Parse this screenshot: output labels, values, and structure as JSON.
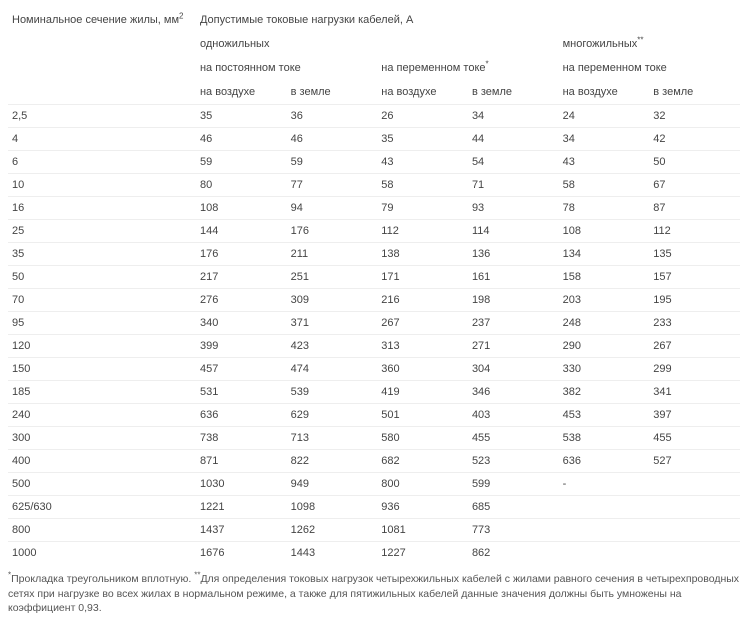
{
  "table": {
    "type": "table",
    "background_color": "#ffffff",
    "grid_color": "#eeeeee",
    "text_color": "#444444",
    "font_size_pt": 8,
    "header": {
      "section_label": "Номинальное сечение жилы, мм",
      "section_sup": "2",
      "main_label": "Допустимые токовые нагрузки кабелей, А",
      "group_single": "одножильных",
      "group_multi": "многожильных",
      "group_multi_sup": "**",
      "sub_dc": "на постоянном токе",
      "sub_ac": "на переменном токе",
      "sub_ac_sup": "*",
      "sub_ac_multi": "на переменном токе",
      "env_air": "на воздухе",
      "env_ground": "в земле"
    },
    "columns": [
      "section",
      "dc_air",
      "dc_ground",
      "ac_air",
      "ac_ground",
      "multi_air",
      "multi_ground"
    ],
    "rows": [
      [
        "2,5",
        "35",
        "36",
        "26",
        "34",
        "24",
        "32"
      ],
      [
        "4",
        "46",
        "46",
        "35",
        "44",
        "34",
        "42"
      ],
      [
        "6",
        "59",
        "59",
        "43",
        "54",
        "43",
        "50"
      ],
      [
        "10",
        "80",
        "77",
        "58",
        "71",
        "58",
        "67"
      ],
      [
        "16",
        "108",
        "94",
        "79",
        "93",
        "78",
        "87"
      ],
      [
        "25",
        "144",
        "176",
        "112",
        "114",
        "108",
        "112"
      ],
      [
        "35",
        "176",
        "211",
        "138",
        "136",
        "134",
        "135"
      ],
      [
        "50",
        "217",
        "251",
        "171",
        "161",
        "158",
        "157"
      ],
      [
        "70",
        "276",
        "309",
        "216",
        "198",
        "203",
        "195"
      ],
      [
        "95",
        "340",
        "371",
        "267",
        "237",
        "248",
        "233"
      ],
      [
        "120",
        "399",
        "423",
        "313",
        "271",
        "290",
        "267"
      ],
      [
        "150",
        "457",
        "474",
        "360",
        "304",
        "330",
        "299"
      ],
      [
        "185",
        "531",
        "539",
        "419",
        "346",
        "382",
        "341"
      ],
      [
        "240",
        "636",
        "629",
        "501",
        "403",
        "453",
        "397"
      ],
      [
        "300",
        "738",
        "713",
        "580",
        "455",
        "538",
        "455"
      ],
      [
        "400",
        "871",
        "822",
        "682",
        "523",
        "636",
        "527"
      ],
      [
        "500",
        "1030",
        "949",
        "800",
        "599",
        "-",
        ""
      ],
      [
        "625/630",
        "1221",
        "1098",
        "936",
        "685",
        "",
        ""
      ],
      [
        "800",
        "1437",
        "1262",
        "1081",
        "773",
        "",
        ""
      ],
      [
        "1000",
        "1676",
        "1443",
        "1227",
        "862",
        "",
        ""
      ]
    ]
  },
  "footnote": {
    "star1": "*",
    "text1": "Прокладка треугольником вплотную. ",
    "star2": "**",
    "text2": "Для определения токовых нагрузок четырехжильных кабелей с жилами равного сечения в четырехпроводных сетях при нагрузке во всех жилах в нормальном режиме, а также для пятижильных кабелей данные значения должны быть умножены на коэффициент 0,93."
  }
}
